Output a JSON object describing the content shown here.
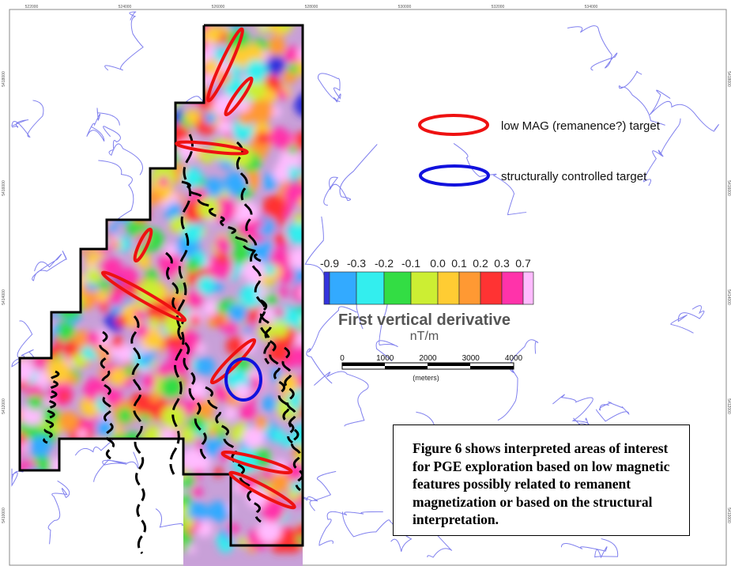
{
  "map": {
    "easting_ticks": [
      "522000",
      "524000",
      "526000",
      "528000",
      "530000",
      "532000",
      "534000"
    ],
    "northing_ticks": [
      "5418000",
      "5416000",
      "5414000",
      "5412000",
      "5410000"
    ],
    "colors": {
      "boundary": "#000000",
      "low_mag_target": "#ee1111",
      "structural_target": "#1111dd",
      "lineament": "#000000",
      "drainage": "#7777ee"
    }
  },
  "legend": {
    "items": [
      {
        "label": "low MAG (remanence?) target",
        "color": "#ee1111"
      },
      {
        "label": "structurally controlled target",
        "color": "#1111dd"
      }
    ]
  },
  "colorbar": {
    "title": "First vertical derivative",
    "unit": "nT/m",
    "tick_labels": [
      "-0.9",
      "-0.3",
      "-0.2",
      "-0.1",
      "0.0",
      "0.1",
      "0.2",
      "0.3",
      "0.7"
    ],
    "colors": [
      "#3333dd",
      "#33aaff",
      "#33eeee",
      "#33dd44",
      "#ccee33",
      "#ffcc33",
      "#ff9933",
      "#ff3333",
      "#ff33aa",
      "#ffbbff"
    ]
  },
  "scalebar": {
    "labels": [
      "0",
      "1000",
      "2000",
      "3000",
      "4000"
    ],
    "unit": "(meters)"
  },
  "note": {
    "text": "Figure 6 shows interpreted areas of interest for PGE exploration based on low magnetic features possibly related to remanent magnetization or based on the structural interpretation."
  }
}
